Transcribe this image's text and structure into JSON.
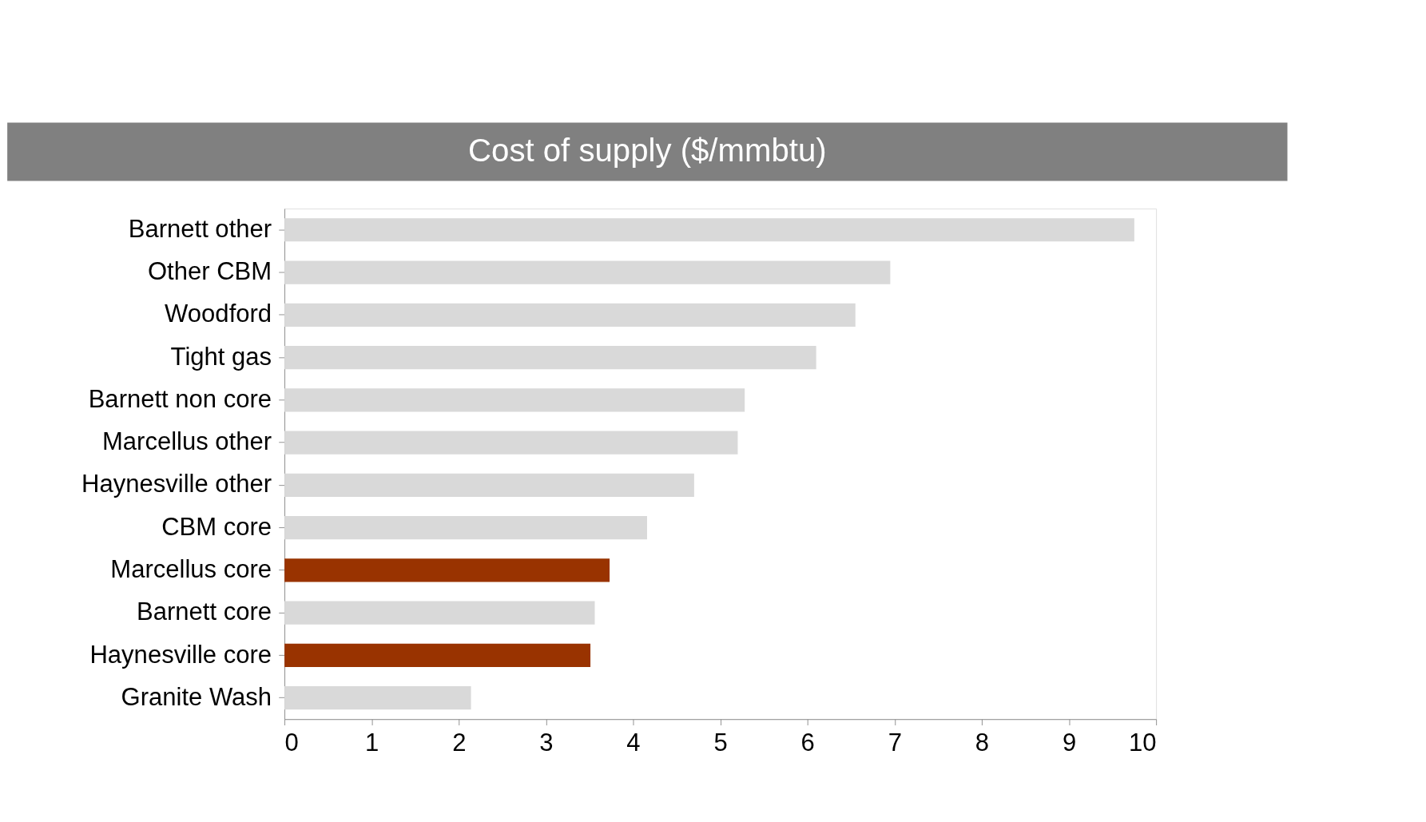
{
  "chart_data": {
    "type": "bar",
    "orientation": "horizontal",
    "title": "Cost of supply ($/mmbtu)",
    "categories": [
      "Barnett other",
      "Other CBM",
      "Woodford",
      "Tight gas",
      "Barnett non core",
      "Marcellus other",
      "Haynesville other",
      "CBM core",
      "Marcellus core",
      "Barnett core",
      "Haynesville core",
      "Granite Wash"
    ],
    "values": [
      9.75,
      6.95,
      6.55,
      6.1,
      5.28,
      5.2,
      4.7,
      4.16,
      3.73,
      3.56,
      3.51,
      2.14
    ],
    "colors": [
      "#d9d9d9",
      "#d9d9d9",
      "#d9d9d9",
      "#d9d9d9",
      "#d9d9d9",
      "#d9d9d9",
      "#d9d9d9",
      "#d9d9d9",
      "#993300",
      "#d9d9d9",
      "#993300",
      "#d9d9d9"
    ],
    "xlim": [
      0,
      10
    ],
    "xticks": [
      0,
      1,
      2,
      3,
      4,
      5,
      6,
      7,
      8,
      9,
      10
    ],
    "grid": false
  }
}
